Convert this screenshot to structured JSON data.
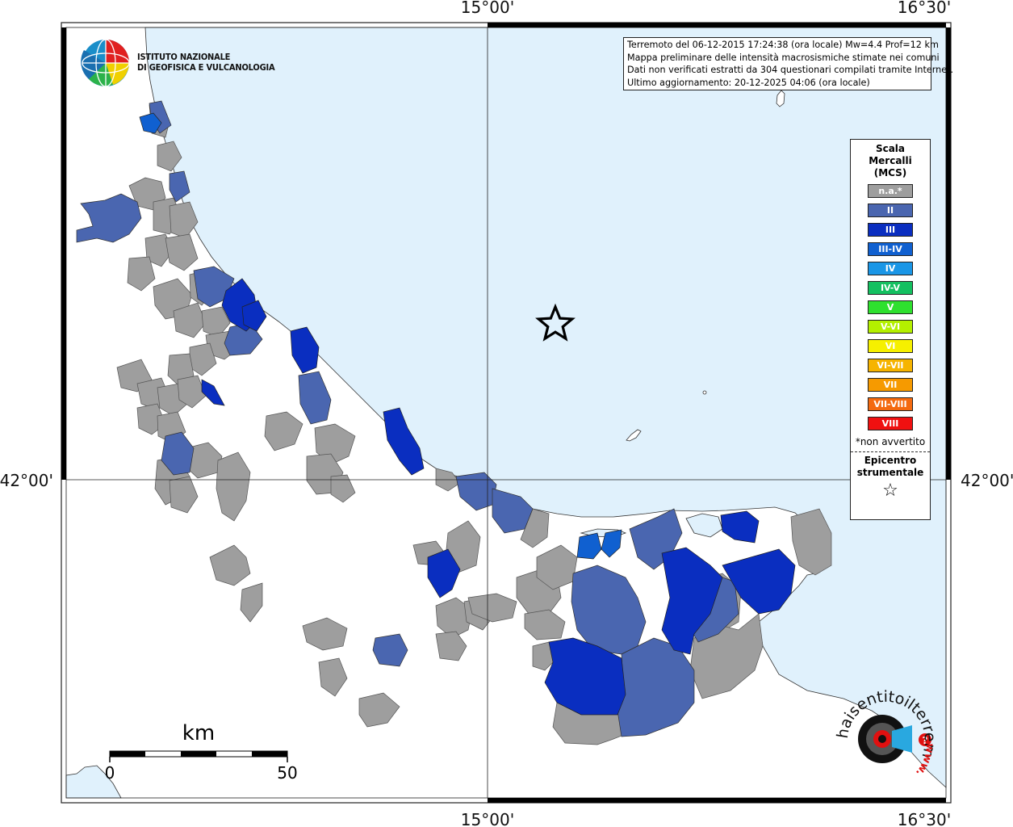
{
  "frame": {
    "top_labels": [
      "15°00'",
      "16°30'"
    ],
    "bottom_labels": [
      "15°00'",
      "16°30'"
    ],
    "left_label": "42°00'",
    "right_label": "42°00'"
  },
  "institute": {
    "line1": "ISTITUTO NAZIONALE",
    "line2": "DI GEOFISICA E VULCANOLOGIA"
  },
  "info_box": {
    "line1": "Terremoto del 06-12-2015 17:24:38 (ora locale) Mw=4.4 Prof=12 km",
    "line2": "Mappa preliminare delle intensità macrosismiche stimate nei comuni",
    "line3": "Dati non verificati estratti da 304 questionari compilati tramite Internet.",
    "line4": "Ultimo aggiornamento: 20-12-2025 04:06 (ora locale)"
  },
  "legend": {
    "title1": "Scala",
    "title2": "Mercalli",
    "title3": "(MCS)",
    "classes": [
      {
        "label": "n.a.*",
        "color": "#9e9e9e"
      },
      {
        "label": "II",
        "color": "#4a66b0"
      },
      {
        "label": "III",
        "color": "#0a2ec0"
      },
      {
        "label": "III-IV",
        "color": "#1060d0"
      },
      {
        "label": "IV",
        "color": "#1a96e6"
      },
      {
        "label": "IV-V",
        "color": "#14c060"
      },
      {
        "label": "V",
        "color": "#2ee02e"
      },
      {
        "label": "V-VI",
        "color": "#b4f000"
      },
      {
        "label": "VI",
        "color": "#f6f000"
      },
      {
        "label": "VI-VII",
        "color": "#f6b400"
      },
      {
        "label": "VII",
        "color": "#f69a00"
      },
      {
        "label": "VII-VIII",
        "color": "#f46a10"
      },
      {
        "label": "VIII",
        "color": "#f01010"
      }
    ],
    "not_felt_note": "*non avvertito",
    "epicenter_title1": "Epicentro",
    "epicenter_title2": "strumentale",
    "epicenter_symbol": "☆"
  },
  "scale_bar": {
    "unit": "km",
    "start": "0",
    "end": "50"
  },
  "watermark": {
    "text": "haisentitoilterremoto.it",
    "sub": "www."
  },
  "colors": {
    "sea": "#e0f1fc",
    "land": "#ffffff",
    "na": "#9e9e9e",
    "ii": "#4a66b0",
    "iii": "#0a2ec0",
    "iii_iv": "#1060d0"
  }
}
